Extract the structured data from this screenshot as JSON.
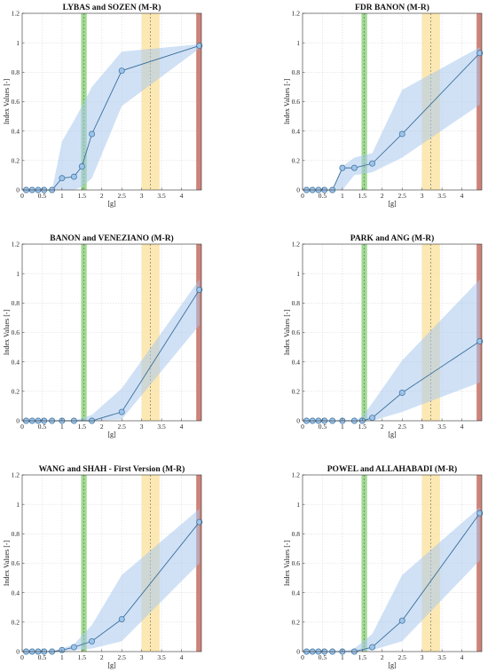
{
  "chart_data": [
    {
      "type": "line",
      "title": "LYBAS and SOZEN (M-R)",
      "xlabel": "[g]",
      "ylabel": "Index Values [-]",
      "xlim": [
        0,
        4.5
      ],
      "ylim": [
        0,
        1.2
      ],
      "xticks": [
        "0",
        "0.5",
        "1",
        "1.5",
        "2",
        "2.5",
        "3",
        "3.5",
        "4"
      ],
      "yticks": [
        "0",
        "0.2",
        "0.4",
        "0.6",
        "0.8",
        "1",
        "1.2"
      ],
      "grid": true,
      "series": [
        {
          "x": [
            0.1,
            0.25,
            0.4,
            0.55,
            0.75,
            1.0,
            1.3,
            1.5,
            1.75,
            2.5,
            4.45
          ],
          "y": [
            0,
            0,
            0,
            0,
            0,
            0.08,
            0.09,
            0.16,
            0.38,
            0.81,
            0.98
          ],
          "band_lower": [
            0,
            0,
            0,
            0,
            0,
            0,
            0,
            0.02,
            0.08,
            0.57,
            0.96
          ],
          "band_upper": [
            0,
            0,
            0,
            0,
            0,
            0.33,
            0.47,
            0.57,
            0.7,
            0.94,
            0.99
          ]
        }
      ],
      "vertical_bands": [
        {
          "range": [
            1.48,
            1.62
          ],
          "center": 1.55,
          "color": "#8fd47e"
        },
        {
          "range": [
            3.0,
            3.45
          ],
          "center": 3.22,
          "color": "#fbe2a0"
        },
        {
          "range": [
            4.37,
            4.5
          ],
          "center": null,
          "color": "#c8756a"
        }
      ],
      "colors": {
        "line": "#3a6f9a",
        "marker_fill": "#9ec4ea",
        "band": "#a9c9ef"
      }
    },
    {
      "type": "line",
      "title": "FDR BANON (M-R)",
      "xlabel": "[g]",
      "ylabel": "Index Values [-]",
      "xlim": [
        0,
        4.5
      ],
      "ylim": [
        0,
        1.2
      ],
      "xticks": [
        "0",
        "0.5",
        "1",
        "1.5",
        "2",
        "2.5",
        "3",
        "3.5",
        "4"
      ],
      "yticks": [
        "0",
        "0.2",
        "0.4",
        "0.6",
        "0.8",
        "1",
        "1.2"
      ],
      "grid": true,
      "series": [
        {
          "x": [
            0.1,
            0.25,
            0.4,
            0.55,
            0.75,
            1.0,
            1.3,
            1.75,
            2.5,
            4.45
          ],
          "y": [
            0,
            0,
            0,
            0,
            0,
            0.15,
            0.15,
            0.18,
            0.38,
            0.93
          ],
          "band_lower": [
            0,
            0,
            0,
            0,
            0,
            0,
            0.1,
            0.12,
            0.22,
            0.58
          ],
          "band_upper": [
            0,
            0,
            0,
            0,
            0,
            0.16,
            0.22,
            0.25,
            0.68,
            0.97
          ]
        }
      ],
      "vertical_bands": [
        {
          "range": [
            1.48,
            1.62
          ],
          "center": 1.55,
          "color": "#8fd47e"
        },
        {
          "range": [
            3.0,
            3.45
          ],
          "center": 3.22,
          "color": "#fbe2a0"
        },
        {
          "range": [
            4.37,
            4.5
          ],
          "center": null,
          "color": "#c8756a"
        }
      ],
      "colors": {
        "line": "#3a6f9a",
        "marker_fill": "#9ec4ea",
        "band": "#a9c9ef"
      }
    },
    {
      "type": "line",
      "title": "BANON and VENEZIANO (M-R)",
      "xlabel": "[g]",
      "ylabel": "Index Values [-]",
      "xlim": [
        0,
        4.5
      ],
      "ylim": [
        0,
        1.2
      ],
      "xticks": [
        "0",
        "0.5",
        "1",
        "1.5",
        "2",
        "2.5",
        "3",
        "3.5",
        "4"
      ],
      "yticks": [
        "0",
        "0.2",
        "0.4",
        "0.6",
        "0.8",
        "1",
        "1.2"
      ],
      "grid": true,
      "series": [
        {
          "x": [
            0.1,
            0.25,
            0.4,
            0.55,
            0.75,
            1.0,
            1.3,
            1.75,
            2.5,
            4.45
          ],
          "y": [
            0,
            0,
            0,
            0,
            0,
            0,
            0,
            0,
            0.06,
            0.89
          ],
          "band_lower": [
            0,
            0,
            0,
            0,
            0,
            0,
            0,
            0,
            0.01,
            0.65
          ],
          "band_upper": [
            0,
            0,
            0,
            0,
            0,
            0,
            0,
            0.04,
            0.22,
            0.96
          ]
        }
      ],
      "vertical_bands": [
        {
          "range": [
            1.48,
            1.62
          ],
          "center": 1.55,
          "color": "#8fd47e"
        },
        {
          "range": [
            3.0,
            3.45
          ],
          "center": 3.22,
          "color": "#fbe2a0"
        },
        {
          "range": [
            4.37,
            4.5
          ],
          "center": null,
          "color": "#c8756a"
        }
      ],
      "colors": {
        "line": "#3a6f9a",
        "marker_fill": "#9ec4ea",
        "band": "#a9c9ef"
      }
    },
    {
      "type": "line",
      "title": "PARK and ANG (M-R)",
      "xlabel": "[g]",
      "ylabel": "Index Values [-]",
      "xlim": [
        0,
        4.5
      ],
      "ylim": [
        0,
        1.2
      ],
      "xticks": [
        "0",
        "0.5",
        "1",
        "1.5",
        "2",
        "2.5",
        "3",
        "3.5",
        "4"
      ],
      "yticks": [
        "0",
        "0.2",
        "0.4",
        "0.6",
        "0.8",
        "1",
        "1.2"
      ],
      "grid": true,
      "series": [
        {
          "x": [
            0.1,
            0.25,
            0.4,
            0.55,
            0.75,
            1.0,
            1.3,
            1.5,
            1.75,
            2.5,
            4.45
          ],
          "y": [
            0,
            0,
            0,
            0,
            0,
            0,
            0,
            0,
            0.02,
            0.19,
            0.54
          ],
          "band_lower": [
            0,
            0,
            0,
            0,
            0,
            0,
            0,
            0,
            0,
            0.06,
            0.26
          ],
          "band_upper": [
            0,
            0,
            0,
            0,
            0,
            0,
            0,
            0.03,
            0.12,
            0.41,
            0.96
          ]
        }
      ],
      "vertical_bands": [
        {
          "range": [
            1.48,
            1.62
          ],
          "center": 1.55,
          "color": "#8fd47e"
        },
        {
          "range": [
            3.0,
            3.45
          ],
          "center": 3.22,
          "color": "#fbe2a0"
        },
        {
          "range": [
            4.37,
            4.5
          ],
          "center": null,
          "color": "#c8756a"
        }
      ],
      "colors": {
        "line": "#3a6f9a",
        "marker_fill": "#9ec4ea",
        "band": "#a9c9ef"
      }
    },
    {
      "type": "line",
      "title": "WANG and SHAH - First Version (M-R)",
      "xlabel": "[g]",
      "ylabel": "Index Values [-]",
      "xlim": [
        0,
        4.5
      ],
      "ylim": [
        0,
        1.2
      ],
      "xticks": [
        "0",
        "0.5",
        "1",
        "1.5",
        "2",
        "2.5",
        "3",
        "3.5",
        "4"
      ],
      "yticks": [
        "0",
        "0.2",
        "0.4",
        "0.6",
        "0.8",
        "1",
        "1.2"
      ],
      "grid": true,
      "series": [
        {
          "x": [
            0.1,
            0.25,
            0.4,
            0.55,
            0.75,
            1.0,
            1.3,
            1.75,
            2.5,
            4.45
          ],
          "y": [
            0,
            0,
            0,
            0,
            0,
            0.01,
            0.03,
            0.07,
            0.22,
            0.88
          ],
          "band_lower": [
            0,
            0,
            0,
            0,
            0,
            0,
            0.01,
            0.02,
            0.07,
            0.6
          ],
          "band_upper": [
            0,
            0,
            0,
            0,
            0,
            0.02,
            0.05,
            0.18,
            0.52,
            0.97
          ]
        }
      ],
      "vertical_bands": [
        {
          "range": [
            1.48,
            1.62
          ],
          "center": 1.55,
          "color": "#8fd47e"
        },
        {
          "range": [
            3.0,
            3.45
          ],
          "center": 3.22,
          "color": "#fbe2a0"
        },
        {
          "range": [
            4.37,
            4.5
          ],
          "center": null,
          "color": "#c8756a"
        }
      ],
      "colors": {
        "line": "#3a6f9a",
        "marker_fill": "#9ec4ea",
        "band": "#a9c9ef"
      }
    },
    {
      "type": "line",
      "title": "POWEL and ALLAHABADI (M-R)",
      "xlabel": "[g]",
      "ylabel": "Index Values [-]",
      "xlim": [
        0,
        4.5
      ],
      "ylim": [
        0,
        1.2
      ],
      "xticks": [
        "0",
        "0.5",
        "1",
        "1.5",
        "2",
        "2.5",
        "3",
        "3.5",
        "4"
      ],
      "yticks": [
        "0",
        "0.2",
        "0.4",
        "0.6",
        "0.8",
        "1",
        "1.2"
      ],
      "grid": true,
      "series": [
        {
          "x": [
            0.1,
            0.25,
            0.4,
            0.55,
            0.75,
            1.0,
            1.3,
            1.75,
            2.5,
            4.45
          ],
          "y": [
            0,
            0,
            0,
            0,
            0,
            0,
            0,
            0.03,
            0.21,
            0.94
          ],
          "band_lower": [
            0,
            0,
            0,
            0,
            0,
            0,
            0,
            0.01,
            0.07,
            0.62
          ],
          "band_upper": [
            0,
            0,
            0,
            0,
            0,
            0,
            0.02,
            0.12,
            0.52,
            0.98
          ]
        }
      ],
      "vertical_bands": [
        {
          "range": [
            1.48,
            1.62
          ],
          "center": 1.55,
          "color": "#8fd47e"
        },
        {
          "range": [
            3.0,
            3.45
          ],
          "center": 3.22,
          "color": "#fbe2a0"
        },
        {
          "range": [
            4.37,
            4.5
          ],
          "center": null,
          "color": "#c8756a"
        }
      ],
      "colors": {
        "line": "#3a6f9a",
        "marker_fill": "#9ec4ea",
        "band": "#a9c9ef"
      }
    }
  ]
}
